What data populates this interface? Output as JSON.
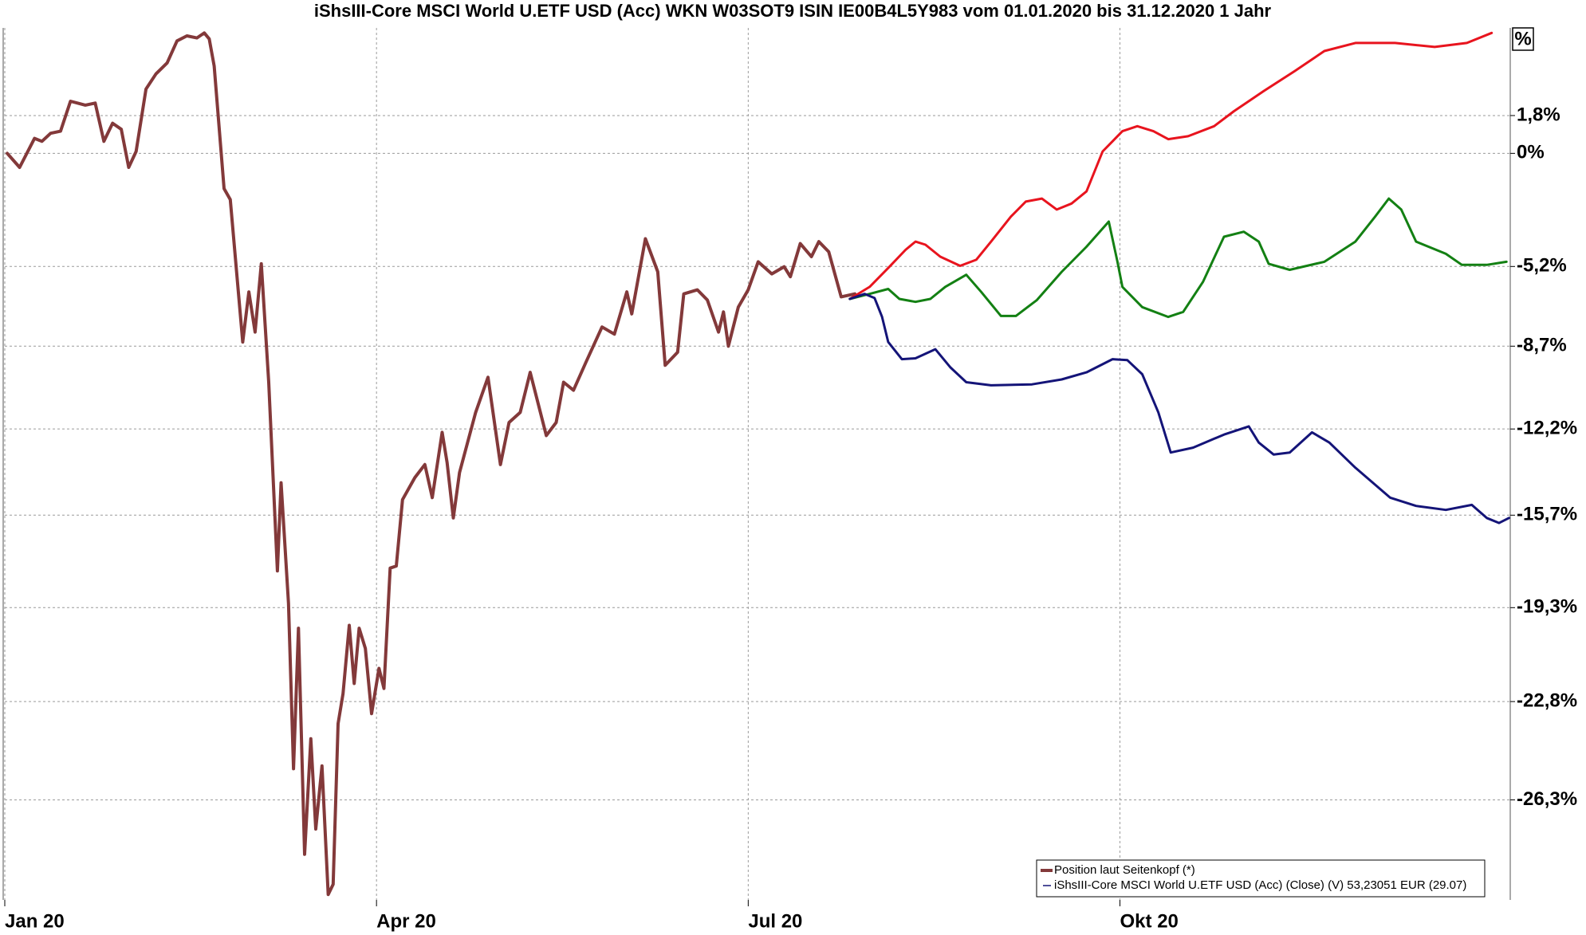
{
  "chart_data": {
    "type": "line",
    "title": "iShsIII-Core MSCI World U.ETF USD (Acc) WKN W03SOT9 ISIN IE00B4L5Y983 vom 01.01.2020 bis 31.12.2020 1 Jahr",
    "y_unit": "%",
    "log": true,
    "grid": true,
    "legend": "bottom-right",
    "xlim": [
      0,
      12.15
    ],
    "xticks": [
      {
        "value": 0,
        "label": "Jan 20"
      },
      {
        "value": 3,
        "label": "Apr 20"
      },
      {
        "value": 6,
        "label": "Jul 20"
      },
      {
        "value": 9,
        "label": "Okt 20"
      }
    ],
    "ylim": [
      -29.7,
      6.1
    ],
    "yticks": [
      {
        "value": 1.8,
        "label": "1,8%"
      },
      {
        "value": 0,
        "label": "0%"
      },
      {
        "value": -5.2,
        "label": "-5,2%"
      },
      {
        "value": -8.7,
        "label": "-8,7%"
      },
      {
        "value": -12.2,
        "label": "-12,2%"
      },
      {
        "value": -15.7,
        "label": "-15,7%"
      },
      {
        "value": -19.3,
        "label": "-19,3%"
      },
      {
        "value": -22.8,
        "label": "-22,8%"
      },
      {
        "value": -26.3,
        "label": "-26,3%"
      }
    ],
    "legend_note": "iShsIII-Core MSCI World U.ETF USD (Acc) (Close) (V) 53,23051 EUR (29.07)",
    "legend_note_color": "#141478",
    "series": [
      {
        "name": "Position laut Seitenkopf (*)",
        "color": "#83393a",
        "width": 4,
        "x": [
          0.02,
          0.12,
          0.24,
          0.3,
          0.37,
          0.45,
          0.53,
          0.65,
          0.73,
          0.8,
          0.87,
          0.94,
          1.0,
          1.06,
          1.14,
          1.22,
          1.31,
          1.39,
          1.47,
          1.55,
          1.61,
          1.65,
          1.69,
          1.77,
          1.82,
          1.92,
          1.97,
          2.02,
          2.07,
          2.13,
          2.2,
          2.23,
          2.29,
          2.33,
          2.37,
          2.42,
          2.47,
          2.51,
          2.56,
          2.61,
          2.65,
          2.69,
          2.73,
          2.78,
          2.82,
          2.86,
          2.91,
          2.96,
          3.02,
          3.06,
          3.11,
          3.16,
          3.21,
          3.31,
          3.39,
          3.45,
          3.53,
          3.57,
          3.62,
          3.67,
          3.8,
          3.9,
          4.0,
          4.07,
          4.16,
          4.24,
          4.37,
          4.45,
          4.51,
          4.59,
          4.69,
          4.82,
          4.92,
          5.02,
          5.06,
          5.17,
          5.27,
          5.33,
          5.43,
          5.48,
          5.59,
          5.67,
          5.76,
          5.8,
          5.84,
          5.92,
          6.0,
          6.08,
          6.19,
          6.29,
          6.34,
          6.42,
          6.51,
          6.57,
          6.65,
          6.75,
          6.86
        ],
        "values": [
          0,
          -0.66,
          0.71,
          0.57,
          0.95,
          1.05,
          2.49,
          2.3,
          2.4,
          0.57,
          1.43,
          1.14,
          -0.66,
          0.09,
          3.08,
          3.82,
          4.36,
          5.45,
          5.7,
          5.6,
          5.85,
          5.55,
          4.21,
          -1.65,
          -2.16,
          -8.52,
          -6.33,
          -8.09,
          -5.08,
          -10.24,
          -17.89,
          -14.4,
          -19.13,
          -25.21,
          -20.08,
          -28.17,
          -24.14,
          -27.31,
          -25.11,
          -29.52,
          -29.18,
          -23.6,
          -22.51,
          -19.97,
          -22.14,
          -20.08,
          -20.84,
          -23.24,
          -21.58,
          -22.32,
          -17.78,
          -17.7,
          -15.08,
          -14.19,
          -13.66,
          -15.0,
          -12.34,
          -13.58,
          -15.81,
          -13.99,
          -11.51,
          -10.03,
          -13.66,
          -11.93,
          -11.51,
          -9.82,
          -12.47,
          -11.93,
          -10.24,
          -10.58,
          -9.39,
          -7.87,
          -8.18,
          -6.33,
          -7.3,
          -3.95,
          -5.44,
          -9.52,
          -8.96,
          -6.42,
          -6.24,
          -6.69,
          -8.09,
          -7.21,
          -8.7,
          -7.0,
          -6.24,
          -4.99,
          -5.53,
          -5.21,
          -5.66,
          -4.17,
          -4.76,
          -4.08,
          -4.54,
          -6.55,
          -6.42
        ]
      },
      {
        "color": "#e8141e",
        "width": 3,
        "x": [
          6.82,
          6.98,
          7.14,
          7.27,
          7.35,
          7.43,
          7.55,
          7.71,
          7.84,
          7.96,
          8.12,
          8.24,
          8.37,
          8.49,
          8.61,
          8.73,
          8.86,
          9.02,
          9.14,
          9.27,
          9.39,
          9.55,
          9.76,
          9.92,
          10.16,
          10.41,
          10.65,
          10.9,
          11.22,
          11.54,
          11.8,
          12.0
        ],
        "values": [
          -6.64,
          -6.11,
          -5.21,
          -4.45,
          -4.08,
          -4.22,
          -4.76,
          -5.17,
          -4.9,
          -4.08,
          -2.94,
          -2.25,
          -2.11,
          -2.62,
          -2.34,
          -1.78,
          0.09,
          1.05,
          1.29,
          1.05,
          0.67,
          0.81,
          1.29,
          2.01,
          2.98,
          3.96,
          4.95,
          5.35,
          5.35,
          5.15,
          5.35,
          5.85
        ]
      },
      {
        "color": "#138013",
        "width": 3,
        "x": [
          6.82,
          6.98,
          7.13,
          7.22,
          7.35,
          7.47,
          7.59,
          7.76,
          7.88,
          8.04,
          8.16,
          8.33,
          8.53,
          8.73,
          8.91,
          8.98,
          9.02,
          9.18,
          9.39,
          9.51,
          9.67,
          9.84,
          10.0,
          10.12,
          10.2,
          10.37,
          10.65,
          10.9,
          11.06,
          11.17,
          11.27,
          11.39,
          11.63,
          11.76,
          11.96,
          12.12
        ],
        "values": [
          -6.64,
          -6.42,
          -6.2,
          -6.64,
          -6.77,
          -6.64,
          -6.11,
          -5.57,
          -6.33,
          -7.39,
          -7.39,
          -6.69,
          -5.44,
          -4.31,
          -3.17,
          -4.99,
          -6.11,
          -7.0,
          -7.43,
          -7.21,
          -5.89,
          -3.86,
          -3.63,
          -4.08,
          -5.08,
          -5.35,
          -4.99,
          -4.08,
          -2.94,
          -2.11,
          -2.62,
          -4.08,
          -4.63,
          -5.13,
          -5.13,
          -4.99
        ]
      },
      {
        "color": "#141478",
        "width": 3,
        "x": [
          6.82,
          6.94,
          7.02,
          7.08,
          7.13,
          7.24,
          7.35,
          7.51,
          7.63,
          7.76,
          7.96,
          8.29,
          8.53,
          8.73,
          8.94,
          9.06,
          9.18,
          9.31,
          9.41,
          9.59,
          9.84,
          10.04,
          10.12,
          10.24,
          10.37,
          10.55,
          10.69,
          10.9,
          11.18,
          11.39,
          11.63,
          11.84,
          11.96,
          12.06,
          12.14
        ],
        "values": [
          -6.64,
          -6.42,
          -6.6,
          -7.43,
          -8.52,
          -9.26,
          -9.22,
          -8.83,
          -9.6,
          -10.24,
          -10.37,
          -10.33,
          -10.12,
          -9.82,
          -9.26,
          -9.3,
          -9.9,
          -11.51,
          -13.17,
          -12.97,
          -12.43,
          -12.09,
          -12.76,
          -13.25,
          -13.17,
          -12.34,
          -12.76,
          -13.79,
          -15.0,
          -15.33,
          -15.49,
          -15.29,
          -15.81,
          -16.01,
          -15.81
        ]
      }
    ]
  }
}
